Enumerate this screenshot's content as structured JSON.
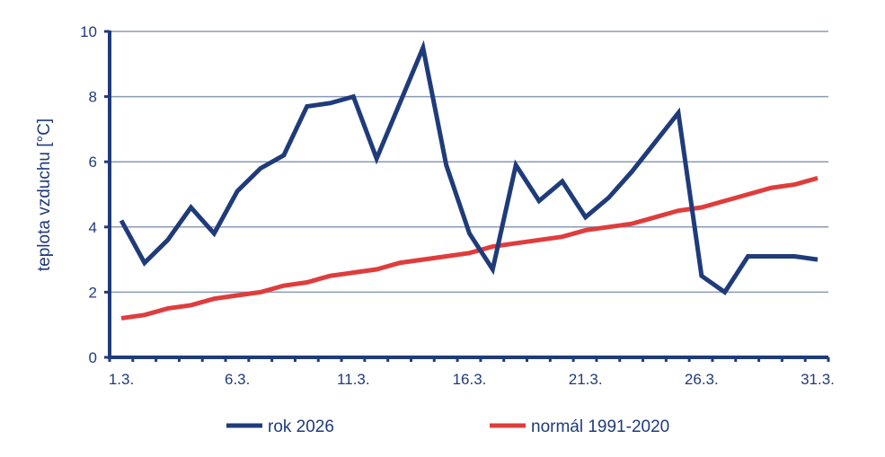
{
  "chart_data": {
    "type": "line",
    "title": "",
    "xlabel": "",
    "ylabel": "teplota vzduchu [°C]",
    "ylim": [
      0,
      10
    ],
    "yticks": [
      "0",
      "2",
      "4",
      "6",
      "8",
      "10"
    ],
    "xticks": [
      "1.3.",
      "6.3.",
      "11.3.",
      "16.3.",
      "21.3.",
      "26.3.",
      "31.3."
    ],
    "x": [
      1,
      2,
      3,
      4,
      5,
      6,
      7,
      8,
      9,
      10,
      11,
      12,
      13,
      14,
      15,
      16,
      17,
      18,
      19,
      20,
      21,
      22,
      23,
      24,
      25,
      26,
      27,
      28,
      29,
      30,
      31
    ],
    "grid": true,
    "legend_position": "bottom",
    "series": [
      {
        "name": "rok 2026",
        "color": "#1f3b7a",
        "values": [
          4.2,
          2.9,
          3.6,
          4.6,
          3.8,
          5.1,
          5.8,
          6.2,
          7.7,
          7.8,
          8.0,
          6.1,
          7.8,
          9.5,
          5.9,
          3.8,
          2.7,
          5.9,
          4.8,
          5.4,
          4.3,
          4.9,
          5.7,
          6.6,
          7.5,
          2.5,
          2.0,
          3.1,
          3.1,
          3.1,
          3.0
        ]
      },
      {
        "name": "normál 1991-2020",
        "color": "#e03c3c",
        "values": [
          1.2,
          1.3,
          1.5,
          1.6,
          1.8,
          1.9,
          2.0,
          2.2,
          2.3,
          2.5,
          2.6,
          2.7,
          2.9,
          3.0,
          3.1,
          3.2,
          3.4,
          3.5,
          3.6,
          3.7,
          3.9,
          4.0,
          4.1,
          4.3,
          4.5,
          4.6,
          4.8,
          5.0,
          5.2,
          5.3,
          5.5
        ]
      }
    ]
  }
}
